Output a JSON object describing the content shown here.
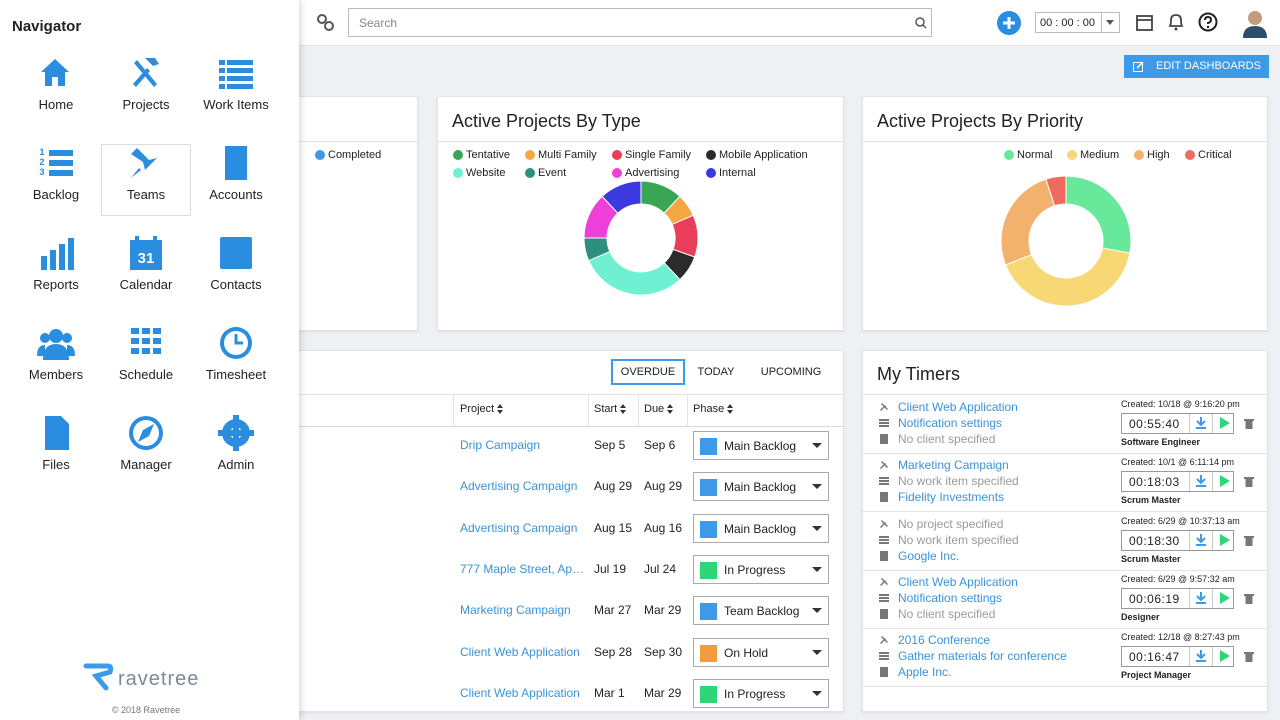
{
  "topbar": {
    "search_placeholder": "Search",
    "timer": "00 : 00 : 00",
    "edit_button": "EDIT DASHBOARDS"
  },
  "navigator": {
    "title": "Navigator",
    "items": [
      {
        "label": "Home"
      },
      {
        "label": "Projects"
      },
      {
        "label": "Work Items"
      },
      {
        "label": "Backlog",
        "icon_text": [
          "1",
          "2",
          "3"
        ]
      },
      {
        "label": "Teams"
      },
      {
        "label": "Accounts"
      },
      {
        "label": "Reports"
      },
      {
        "label": "Calendar",
        "icon_text": [
          "31"
        ]
      },
      {
        "label": "Contacts"
      },
      {
        "label": "Members"
      },
      {
        "label": "Schedule"
      },
      {
        "label": "Timesheet"
      },
      {
        "label": "Files"
      },
      {
        "label": "Manager"
      },
      {
        "label": "Admin"
      }
    ],
    "hovered_item": 4,
    "brand": "ravetree",
    "copyright": "© 2018 Ravetree"
  },
  "status_card": {
    "legend": [
      {
        "name": "Completed",
        "color": "#3d9ae8"
      }
    ]
  },
  "chart_data": [
    {
      "type": "donut",
      "title": "Active Projects By Type",
      "categories": [
        "Tentative",
        "Multi Family",
        "Single Family",
        "Mobile Application",
        "Website",
        "Event",
        "Advertising",
        "Internal"
      ],
      "colors": [
        "#3aa655",
        "#f5a742",
        "#e93e5a",
        "#2b2b2b",
        "#6ff0d2",
        "#2e8f7f",
        "#f03ed8",
        "#3a3ae0"
      ],
      "values": [
        11,
        6,
        11,
        7,
        28,
        6,
        12,
        11
      ]
    },
    {
      "type": "donut",
      "title": "Active Projects By Priority",
      "categories": [
        "Normal",
        "Medium",
        "High",
        "Critical"
      ],
      "colors": [
        "#68e89a",
        "#f8d775",
        "#f3b16e",
        "#ef6b5e"
      ],
      "values": [
        28,
        41,
        26,
        5
      ]
    }
  ],
  "tasks": {
    "tabs": [
      "OVERDUE",
      "TODAY",
      "UPCOMING"
    ],
    "active_tab": 0,
    "columns": [
      "Project",
      "Start",
      "Due",
      "Phase"
    ],
    "rows": [
      {
        "project": "Drip Campaign",
        "start": "Sep 5",
        "due": "Sep 6",
        "phase": "Main Backlog",
        "phase_color": "#3d9ae8"
      },
      {
        "project": "Advertising Campaign",
        "start": "Aug 29",
        "due": "Aug 29",
        "phase": "Main Backlog",
        "phase_color": "#3d9ae8"
      },
      {
        "project": "Advertising Campaign",
        "start": "Aug 15",
        "due": "Aug 16",
        "phase": "Main Backlog",
        "phase_color": "#3d9ae8"
      },
      {
        "project": "777 Maple Street, Ap…",
        "start": "Jul 19",
        "due": "Jul 24",
        "phase": "In Progress",
        "phase_color": "#2ed67a"
      },
      {
        "project": "Marketing Campaign",
        "start": "Mar 27",
        "due": "Mar 29",
        "phase": "Team Backlog",
        "phase_color": "#3d9ae8"
      },
      {
        "project": "Client Web Application",
        "start": "Sep 28",
        "due": "Sep 30",
        "phase": "On Hold",
        "phase_color": "#f39c3c"
      },
      {
        "project": "Client Web Application",
        "start": "Mar 1",
        "due": "Mar 29",
        "phase": "In Progress",
        "phase_color": "#2ed67a"
      }
    ]
  },
  "timers": {
    "title": "My Timers",
    "entries": [
      {
        "project": {
          "text": "Client Web Application",
          "color": "#3b93d6"
        },
        "item": {
          "text": "Notification settings",
          "color": "#3b93d6"
        },
        "client": {
          "text": "No client specified",
          "color": "#9a9a9a"
        },
        "created": "Created: 10/18 @ 9:16:20 pm",
        "time": "00:55:40",
        "role": "Software Engineer"
      },
      {
        "project": {
          "text": "Marketing Campaign",
          "color": "#3b93d6"
        },
        "item": {
          "text": "No work item specified",
          "color": "#9a9a9a"
        },
        "client": {
          "text": "Fidelity Investments",
          "color": "#3b93d6"
        },
        "created": "Created: 10/1 @ 6:11:14 pm",
        "time": "00:18:03",
        "role": "Scrum Master"
      },
      {
        "project": {
          "text": "No project specified",
          "color": "#9a9a9a"
        },
        "item": {
          "text": "No work item specified",
          "color": "#9a9a9a"
        },
        "client": {
          "text": "Google Inc.",
          "color": "#3b93d6"
        },
        "created": "Created: 6/29 @ 10:37:13 am",
        "time": "00:18:30",
        "role": "Scrum Master"
      },
      {
        "project": {
          "text": "Client Web Application",
          "color": "#3b93d6"
        },
        "item": {
          "text": "Notification settings",
          "color": "#3b93d6"
        },
        "client": {
          "text": "No client specified",
          "color": "#9a9a9a"
        },
        "created": "Created: 6/29 @ 9:57:32 am",
        "time": "00:06:19",
        "role": "Designer"
      },
      {
        "project": {
          "text": "2016 Conference",
          "color": "#3b93d6"
        },
        "item": {
          "text": "Gather materials for conference",
          "color": "#3b93d6"
        },
        "client": {
          "text": "Apple Inc.",
          "color": "#3b93d6"
        },
        "created": "Created: 12/18 @ 8:27:43 pm",
        "time": "00:16:47",
        "role": "Project Manager"
      }
    ]
  }
}
